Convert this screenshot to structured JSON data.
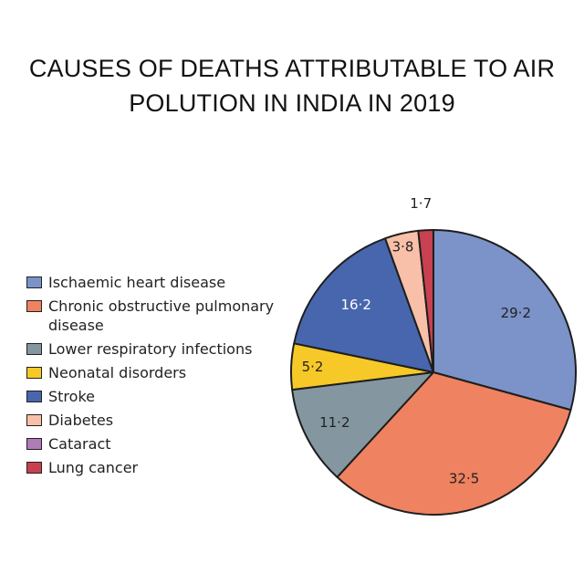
{
  "title_line1": "CAUSES OF DEATHS ATTRIBUTABLE TO AIR",
  "title_line2": "POLUTION IN INDIA IN 2019",
  "chart_data": {
    "type": "pie",
    "title": "CAUSES OF DEATHS ATTRIBUTABLE TO AIR POLUTION IN INDIA IN 2019",
    "legend_position": "left",
    "slices": [
      {
        "label": "Ischaemic heart disease",
        "value": 29.2,
        "display": "29·2",
        "color": "#7b93c8"
      },
      {
        "label": "Chronic obstructive pulmonary disease",
        "value": 32.5,
        "display": "32·5",
        "color": "#ef8260"
      },
      {
        "label": "Lower respiratory infections",
        "value": 11.2,
        "display": "11·2",
        "color": "#8497a0"
      },
      {
        "label": "Neonatal disorders",
        "value": 5.2,
        "display": "5·2",
        "color": "#f7c928"
      },
      {
        "label": "Stroke",
        "value": 16.2,
        "display": "16·2",
        "color": "#4766ad"
      },
      {
        "label": "Diabetes",
        "value": 3.8,
        "display": "3·8",
        "color": "#f8c0a8"
      },
      {
        "label": "Cataract",
        "value": 0.0,
        "display": "",
        "color": "#b07bb8"
      },
      {
        "label": "Lung cancer",
        "value": 1.7,
        "display": "1·7",
        "color": "#c84150"
      }
    ]
  }
}
